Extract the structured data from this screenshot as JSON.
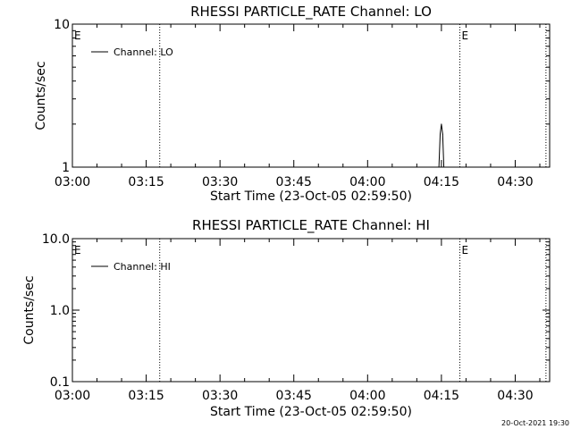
{
  "chart_data": [
    {
      "type": "line",
      "title": "RHESSI PARTICLE_RATE Channel: LO",
      "xlabel": "Start Time (23-Oct-05 02:59:50)",
      "ylabel": "Counts/sec",
      "y_scale": "log",
      "ylim": [
        1,
        10
      ],
      "y_ticks": [
        {
          "value": 1,
          "label": "1"
        },
        {
          "value": 10,
          "label": "10"
        }
      ],
      "xlim": [
        "03:00",
        "04:37"
      ],
      "x_ticks": [
        "03:00",
        "03:15",
        "03:30",
        "03:45",
        "04:00",
        "04:15",
        "04:30"
      ],
      "grid": false,
      "legend": "top-left",
      "series": [
        {
          "name": "Channel: LO",
          "x": [
            "04:14:30",
            "04:14:45",
            "04:15:00",
            "04:15:15",
            "04:15:30"
          ],
          "y": [
            1.0,
            1.7,
            2.0,
            1.7,
            1.0
          ]
        }
      ],
      "markers": [
        {
          "x": "03:00",
          "label": "E"
        },
        {
          "x": "03:17:45",
          "label": ""
        },
        {
          "x": "04:18:45",
          "label": "E"
        },
        {
          "x": "04:36:15",
          "label": ""
        }
      ]
    },
    {
      "type": "line",
      "title": "RHESSI PARTICLE_RATE Channel: HI",
      "xlabel": "Start Time (23-Oct-05 02:59:50)",
      "ylabel": "Counts/sec",
      "y_scale": "log",
      "ylim": [
        0.1,
        10
      ],
      "y_ticks": [
        {
          "value": 0.1,
          "label": "0.1"
        },
        {
          "value": 1,
          "label": "1.0"
        },
        {
          "value": 10,
          "label": "10.0"
        }
      ],
      "xlim": [
        "03:00",
        "04:37"
      ],
      "x_ticks": [
        "03:00",
        "03:15",
        "03:30",
        "03:45",
        "04:00",
        "04:15",
        "04:30"
      ],
      "grid": false,
      "legend": "top-left",
      "series": [
        {
          "name": "Channel: HI",
          "x": [],
          "y": []
        }
      ],
      "markers": [
        {
          "x": "03:00",
          "label": "E"
        },
        {
          "x": "03:17:45",
          "label": ""
        },
        {
          "x": "04:18:45",
          "label": "E"
        },
        {
          "x": "04:36:15",
          "label": ""
        }
      ]
    }
  ],
  "footer": {
    "timestamp": "20-Oct-2021 19:30"
  }
}
